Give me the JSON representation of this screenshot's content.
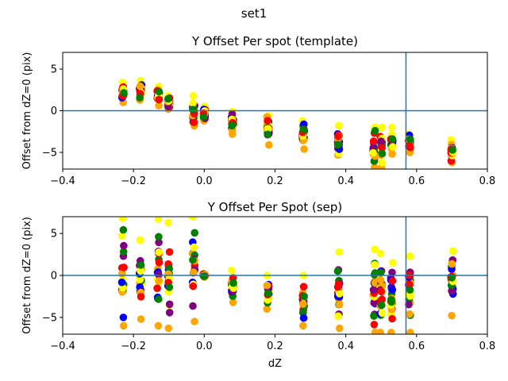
{
  "figure_title": "set1",
  "colors": {
    "axis_line": "#1f77b4",
    "series": [
      "#ffa500",
      "#ffff00",
      "#ff0000",
      "#008000",
      "#0000ff",
      "#800080"
    ]
  },
  "chart_data": [
    {
      "type": "scatter",
      "title": "Y Offset Per spot (template)",
      "xlabel": "",
      "ylabel": "Offset from dZ=0 (pix)",
      "xlim": [
        -0.4,
        0.8
      ],
      "ylim": [
        -7,
        7
      ],
      "xticks": [
        -0.4,
        -0.2,
        0.0,
        0.2,
        0.4,
        0.6,
        0.8
      ],
      "yticks": [
        -5,
        0,
        5
      ],
      "reference_lines": {
        "vertical_x": 0.57,
        "horizontal_y": 0
      },
      "groups": [
        {
          "x": -0.23,
          "min": 1.0,
          "max": 3.4
        },
        {
          "x": -0.18,
          "min": 1.3,
          "max": 3.6
        },
        {
          "x": -0.13,
          "min": 0.6,
          "max": 2.9
        },
        {
          "x": -0.1,
          "min": 0.2,
          "max": 1.8
        },
        {
          "x": -0.03,
          "min": -1.8,
          "max": 1.8
        },
        {
          "x": 0.0,
          "min": -1.2,
          "max": 0.5
        },
        {
          "x": 0.08,
          "min": -2.8,
          "max": -0.1
        },
        {
          "x": 0.18,
          "min": -4.1,
          "max": -0.6
        },
        {
          "x": 0.28,
          "min": -4.6,
          "max": -1.2
        },
        {
          "x": 0.38,
          "min": -5.3,
          "max": -1.8
        },
        {
          "x": 0.48,
          "min": -6.8,
          "max": -2.0
        },
        {
          "x": 0.5,
          "min": -6.8,
          "max": -2.0
        },
        {
          "x": 0.53,
          "min": -5.2,
          "max": -2.0
        },
        {
          "x": 0.58,
          "min": -5.0,
          "max": -2.8
        },
        {
          "x": 0.7,
          "min": -6.2,
          "max": -3.5
        }
      ]
    },
    {
      "type": "scatter",
      "title": "Y Offset Per Spot (sep)",
      "xlabel": "dZ",
      "ylabel": "Offset from dZ=0 (pix)",
      "xlim": [
        -0.4,
        0.8
      ],
      "ylim": [
        -7,
        7
      ],
      "xticks": [
        -0.4,
        -0.2,
        0.0,
        0.2,
        0.4,
        0.6,
        0.8
      ],
      "yticks": [
        -5,
        0,
        5
      ],
      "reference_lines": {
        "vertical_x": 0.57,
        "horizontal_y": 0
      },
      "groups": [
        {
          "x": -0.23,
          "min": -6.0,
          "max": 6.8
        },
        {
          "x": -0.18,
          "min": -5.2,
          "max": 4.2
        },
        {
          "x": -0.13,
          "min": -6.0,
          "max": 6.7
        },
        {
          "x": -0.1,
          "min": -6.3,
          "max": 6.3
        },
        {
          "x": -0.03,
          "min": -5.5,
          "max": 7.0
        },
        {
          "x": 0.0,
          "min": -0.2,
          "max": 0.2
        },
        {
          "x": 0.08,
          "min": -3.2,
          "max": 0.6
        },
        {
          "x": 0.18,
          "min": -4.0,
          "max": 0.0
        },
        {
          "x": 0.28,
          "min": -6.0,
          "max": 0.0
        },
        {
          "x": 0.38,
          "min": -6.3,
          "max": 2.8
        },
        {
          "x": 0.48,
          "min": -6.8,
          "max": 3.1
        },
        {
          "x": 0.5,
          "min": -6.8,
          "max": 2.6
        },
        {
          "x": 0.53,
          "min": -6.8,
          "max": 1.5
        },
        {
          "x": 0.58,
          "min": -6.8,
          "max": 2.3
        },
        {
          "x": 0.7,
          "min": -4.8,
          "max": 2.9
        }
      ]
    }
  ]
}
